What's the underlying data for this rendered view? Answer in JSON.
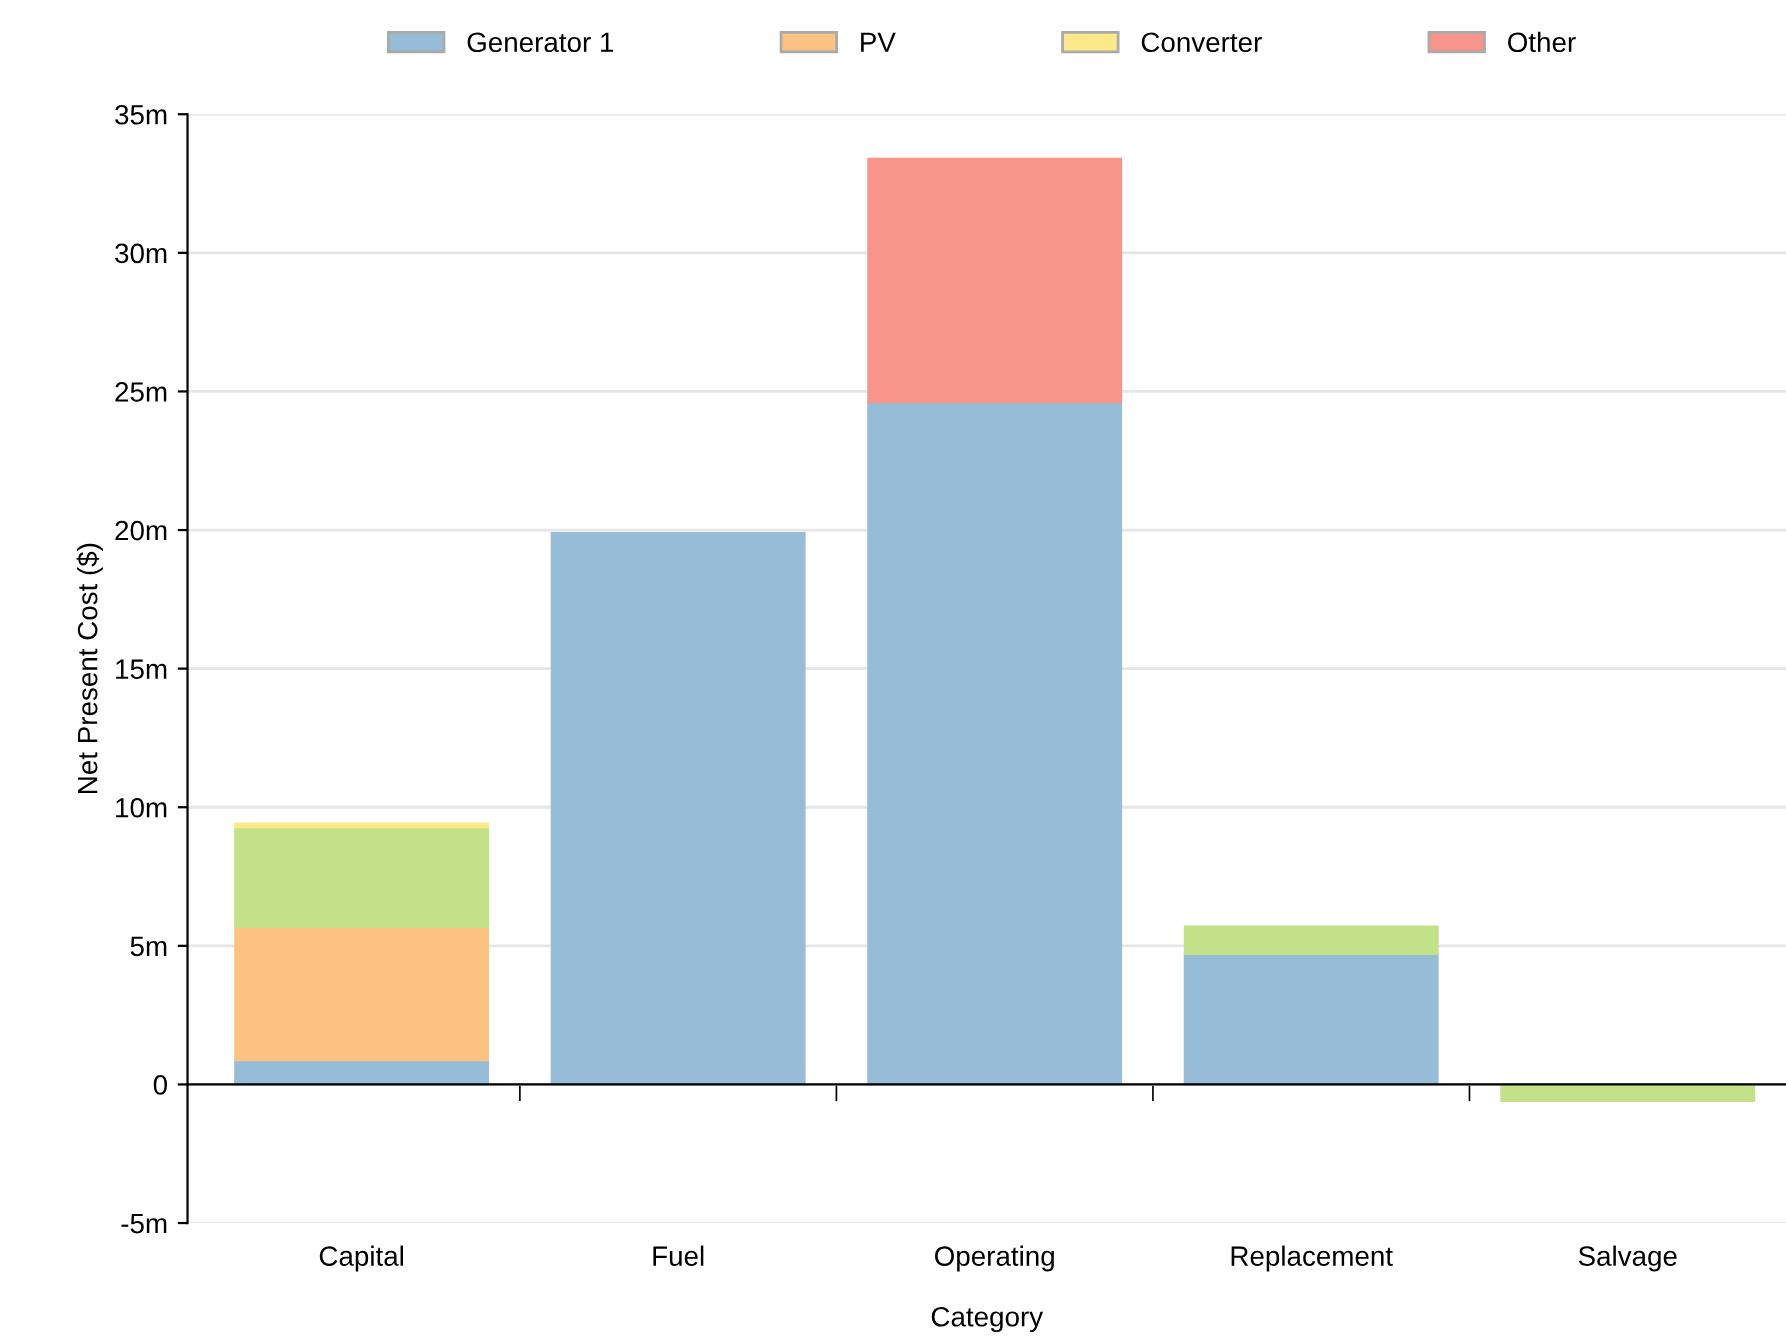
{
  "chart_data": {
    "type": "bar",
    "stacked": true,
    "xlabel": "Category",
    "ylabel": "Net Present Cost ($)",
    "categories": [
      "Capital",
      "Fuel",
      "Operating",
      "Replacement",
      "Salvage"
    ],
    "series": [
      {
        "name": "Generator 1",
        "color": "#97bcd8",
        "values": [
          0.87,
          19.9,
          24.6,
          4.7,
          null
        ]
      },
      {
        "name": "PV",
        "color": "#fcc281",
        "values": [
          4.8,
          null,
          null,
          null,
          null
        ]
      },
      {
        "color": "#c2e188",
        "values": [
          3.6,
          null,
          null,
          1.0,
          -0.6
        ]
      },
      {
        "name": "Converter",
        "color": "#fde98a",
        "values": [
          0.15,
          null,
          null,
          null,
          null
        ]
      },
      {
        "name": "Other",
        "color": "#f7958a",
        "values": [
          null,
          null,
          8.8,
          null,
          null
        ]
      }
    ],
    "ylim": [
      -5,
      35
    ],
    "yticks": [
      {
        "value": -5,
        "label": "-5m"
      },
      0,
      {
        "value": 5,
        "label": "5m"
      },
      {
        "value": 10,
        "label": "10m"
      },
      {
        "value": 15,
        "label": "15m"
      },
      {
        "value": 20,
        "label": "20m"
      },
      {
        "value": 25,
        "label": "25m"
      },
      {
        "value": 30,
        "label": "30m"
      },
      {
        "value": 35,
        "label": "35m"
      }
    ],
    "grid": "y",
    "legend": "top"
  }
}
